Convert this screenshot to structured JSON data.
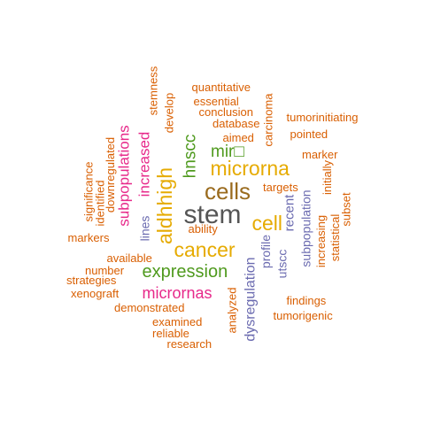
{
  "palette": {
    "dark_gray": "#555555",
    "brown": "#9a6b1e",
    "gold": "#e6ab02",
    "green": "#4f9a1e",
    "magenta": "#e7298a",
    "slate_purple": "#6b6bb0",
    "orange": "#d95f02"
  },
  "words": [
    {
      "id": "stem",
      "text": "stem",
      "color": "dark_gray",
      "rotated": false
    },
    {
      "id": "cells",
      "text": "cells",
      "color": "brown",
      "rotated": false
    },
    {
      "id": "microrna",
      "text": "microrna",
      "color": "gold",
      "rotated": false
    },
    {
      "id": "cancer",
      "text": "cancer",
      "color": "gold",
      "rotated": false
    },
    {
      "id": "cell",
      "text": "cell",
      "color": "gold",
      "rotated": false
    },
    {
      "id": "aldhhigh",
      "text": "aldhhigh",
      "color": "gold",
      "rotated": true
    },
    {
      "id": "expression",
      "text": "expression",
      "color": "green",
      "rotated": false
    },
    {
      "id": "mir",
      "text": "mir□",
      "color": "green",
      "rotated": false
    },
    {
      "id": "hnscc",
      "text": "hnscc",
      "color": "green",
      "rotated": true
    },
    {
      "id": "micrornas",
      "text": "micrornas",
      "color": "magenta",
      "rotated": false
    },
    {
      "id": "increased",
      "text": "increased",
      "color": "magenta",
      "rotated": true
    },
    {
      "id": "subpopulations",
      "text": "subpopulations",
      "color": "magenta",
      "rotated": true
    },
    {
      "id": "recent",
      "text": "recent",
      "color": "slate_purple",
      "rotated": true
    },
    {
      "id": "subpopulation",
      "text": "subpopulation",
      "color": "slate_purple",
      "rotated": true
    },
    {
      "id": "dysregulation",
      "text": "dysregulation",
      "color": "slate_purple",
      "rotated": true
    },
    {
      "id": "profile",
      "text": "profile",
      "color": "slate_purple",
      "rotated": true
    },
    {
      "id": "utscc",
      "text": "utscc",
      "color": "slate_purple",
      "rotated": true
    },
    {
      "id": "lines",
      "text": "lines",
      "color": "slate_purple",
      "rotated": true
    },
    {
      "id": "quantitative",
      "text": "quantitative",
      "color": "orange",
      "rotated": false
    },
    {
      "id": "essential",
      "text": "essential",
      "color": "orange",
      "rotated": false
    },
    {
      "id": "conclusion",
      "text": "conclusion",
      "color": "orange",
      "rotated": false
    },
    {
      "id": "database",
      "text": "database",
      "color": "orange",
      "rotated": false
    },
    {
      "id": "aimed",
      "text": "aimed",
      "color": "orange",
      "rotated": false
    },
    {
      "id": "tumorinitiating",
      "text": "tumorinitiating",
      "color": "orange",
      "rotated": false
    },
    {
      "id": "pointed",
      "text": "pointed",
      "color": "orange",
      "rotated": false
    },
    {
      "id": "marker",
      "text": "marker",
      "color": "orange",
      "rotated": false
    },
    {
      "id": "targets",
      "text": "targets",
      "color": "orange",
      "rotated": false
    },
    {
      "id": "ability",
      "text": "ability",
      "color": "orange",
      "rotated": false
    },
    {
      "id": "markers",
      "text": "markers",
      "color": "orange",
      "rotated": false
    },
    {
      "id": "available",
      "text": "available",
      "color": "orange",
      "rotated": false
    },
    {
      "id": "number",
      "text": "number",
      "color": "orange",
      "rotated": false
    },
    {
      "id": "strategies",
      "text": "strategies",
      "color": "orange",
      "rotated": false
    },
    {
      "id": "xenograft",
      "text": "xenograft",
      "color": "orange",
      "rotated": false
    },
    {
      "id": "demonstrated",
      "text": "demonstrated",
      "color": "orange",
      "rotated": false
    },
    {
      "id": "examined",
      "text": "examined",
      "color": "orange",
      "rotated": false
    },
    {
      "id": "reliable",
      "text": "reliable",
      "color": "orange",
      "rotated": false
    },
    {
      "id": "research",
      "text": "research",
      "color": "orange",
      "rotated": false
    },
    {
      "id": "findings",
      "text": "findings",
      "color": "orange",
      "rotated": false
    },
    {
      "id": "tumorigenic",
      "text": "tumorigenic",
      "color": "orange",
      "rotated": false
    },
    {
      "id": "analyzed",
      "text": "analyzed",
      "color": "orange",
      "rotated": true
    },
    {
      "id": "stemness",
      "text": "stemness",
      "color": "orange",
      "rotated": true
    },
    {
      "id": "develop",
      "text": "develop",
      "color": "orange",
      "rotated": true
    },
    {
      "id": "carcinoma",
      "text": "carcinoma",
      "color": "orange",
      "rotated": true
    },
    {
      "id": "initially",
      "text": "initially",
      "color": "orange",
      "rotated": true
    },
    {
      "id": "subset",
      "text": "subset",
      "color": "orange",
      "rotated": true
    },
    {
      "id": "statistical",
      "text": "statistical",
      "color": "orange",
      "rotated": true
    },
    {
      "id": "increasing",
      "text": "increasing",
      "color": "orange",
      "rotated": true
    },
    {
      "id": "significance",
      "text": "significance",
      "color": "orange",
      "rotated": true
    },
    {
      "id": "identified",
      "text": "identified",
      "color": "orange",
      "rotated": true
    },
    {
      "id": "downregulated",
      "text": "downregulated",
      "color": "orange",
      "rotated": true
    }
  ]
}
